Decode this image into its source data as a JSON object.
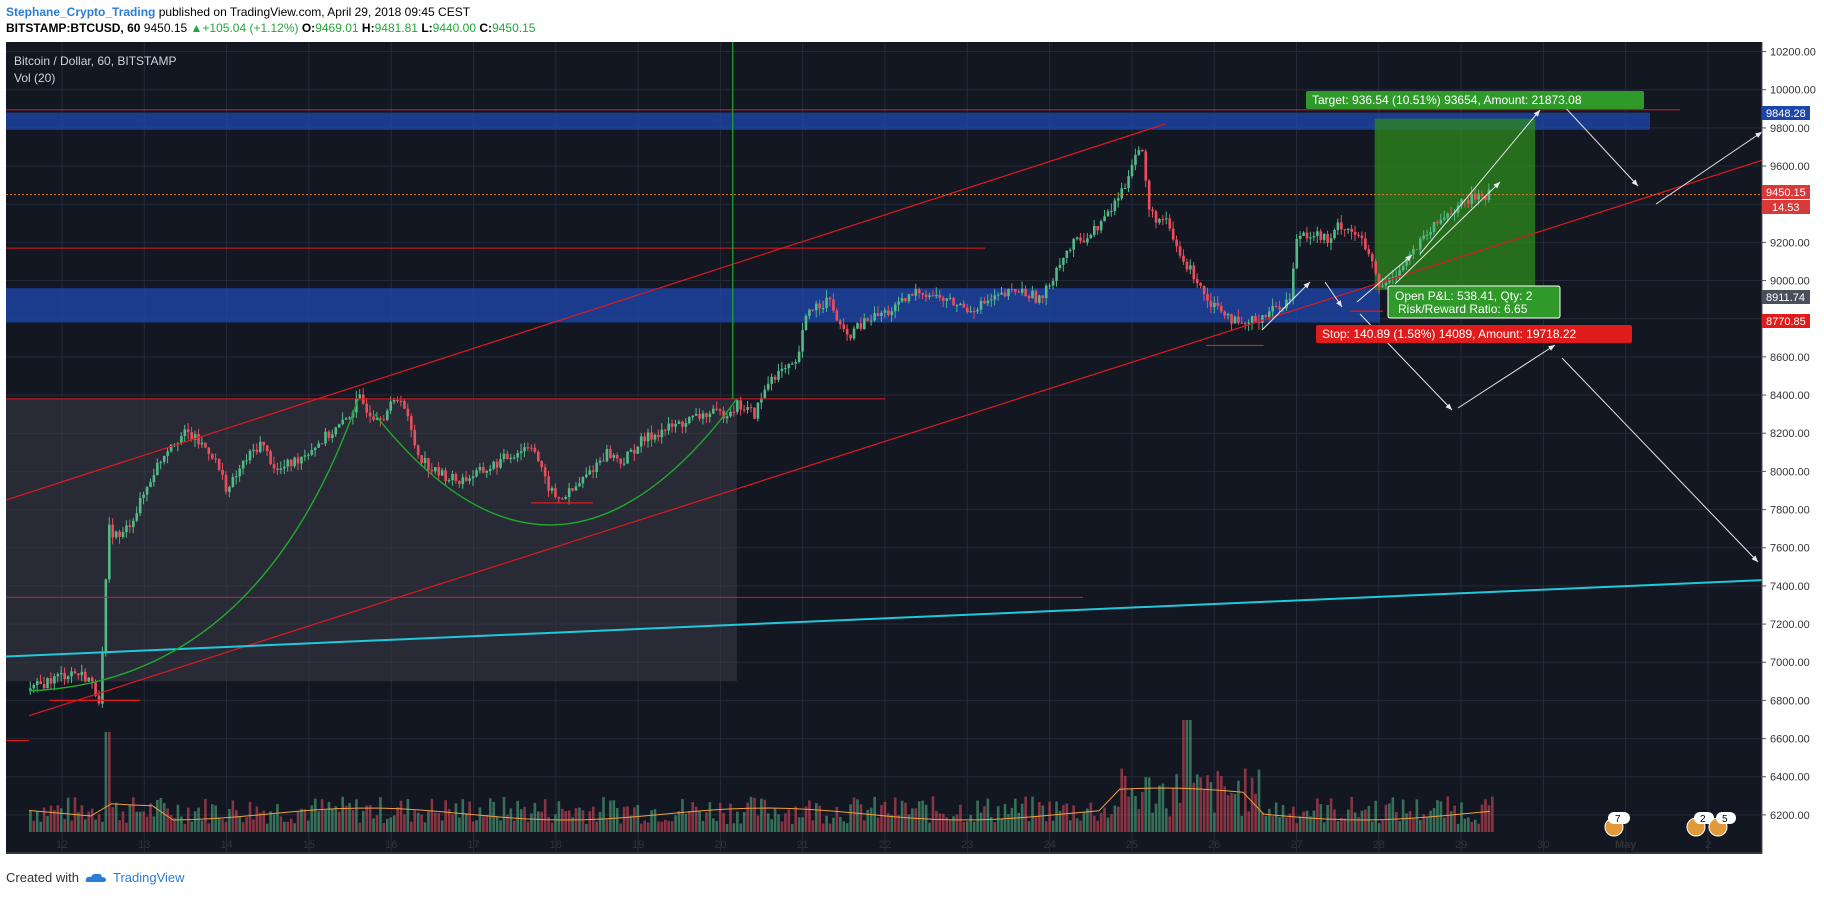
{
  "header": {
    "author": "Stephane_Crypto_Trading",
    "published": "published on TradingView.com, April 29, 2018 09:45 CEST",
    "symbol": "BITSTAMP:BTCUSD, 60",
    "last": "9450.15",
    "change": "+105.04 (+1.12%)",
    "o_label": "O:",
    "o_value": "9469.01",
    "h_label": "H:",
    "h_value": "9481.81",
    "l_label": "L:",
    "l_value": "9440.00",
    "c_label": "C:",
    "c_value": "9450.15"
  },
  "legend": {
    "title": "Bitcoin / Dollar, 60, BITSTAMP",
    "volume": "Vol (20)"
  },
  "footer": {
    "created": "Created with",
    "brand": "TradingView"
  },
  "colors": {
    "background": "#131722",
    "grid": "#242a38",
    "up": "#53b987",
    "down": "#eb4d5c",
    "trendline": "#e0191f",
    "zone": "#1e45a8",
    "target_box": "#2e8b1e",
    "cyan_line": "#21c9db",
    "cup": "#1faa2e"
  },
  "badges": {
    "target": "Target: 936.54 (10.51%) 93654, Amount: 21873.08",
    "stop": "Stop: 140.89 (1.58%) 14089, Amount: 19718.22",
    "open_pl": "Open P&L: 538.41, Qty: 2",
    "risk_reward": "Risk/Reward Ratio: 6.65"
  },
  "price_labels": {
    "zone_top": "9848.28",
    "last_price": "9450.15",
    "countdown": "14.53",
    "zone_low": "8911.74",
    "stop_price": "8770.85"
  },
  "markers": {
    "m1": "7",
    "m2": "2",
    "m3": "5"
  },
  "chart_data": {
    "type": "candlestick",
    "title": "Bitcoin / Dollar, 60, BITSTAMP",
    "ylim": [
      6100,
      10250
    ],
    "y_ticks": [
      6200,
      6400,
      6600,
      6800,
      7000,
      7200,
      7400,
      7600,
      7800,
      8000,
      8200,
      8400,
      8600,
      8800,
      9000,
      9200,
      9400,
      9600,
      9800,
      10000,
      10200
    ],
    "y_tick_labels": [
      "6200.00",
      "6400.00",
      "6600.00",
      "6800.00",
      "7000.00",
      "7200.00",
      "7400.00",
      "7600.00",
      "7800.00",
      "8000.00",
      "8200.00",
      "8400.00",
      "8600.00",
      "8800.00",
      "9000.00",
      "9200.00",
      "9400.00",
      "9600.00",
      "9800.00",
      "10000.00",
      "10200.00"
    ],
    "x_labels": [
      "12",
      "13",
      "14",
      "15",
      "16",
      "17",
      "18",
      "19",
      "20",
      "21",
      "22",
      "23",
      "24",
      "25",
      "26",
      "27",
      "28",
      "29",
      "30",
      "May",
      "2"
    ],
    "price_path": [
      [
        11.6,
        6850
      ],
      [
        11.8,
        6900
      ],
      [
        12.1,
        6950
      ],
      [
        12.3,
        6920
      ],
      [
        12.45,
        6800
      ],
      [
        12.55,
        7700
      ],
      [
        12.7,
        7650
      ],
      [
        12.9,
        7800
      ],
      [
        13.1,
        8000
      ],
      [
        13.3,
        8150
      ],
      [
        13.5,
        8200
      ],
      [
        13.8,
        8100
      ],
      [
        14.0,
        7900
      ],
      [
        14.2,
        8050
      ],
      [
        14.4,
        8150
      ],
      [
        14.6,
        8000
      ],
      [
        14.8,
        8050
      ],
      [
        15.1,
        8150
      ],
      [
        15.4,
        8250
      ],
      [
        15.6,
        8380
      ],
      [
        15.75,
        8300
      ],
      [
        15.9,
        8300
      ],
      [
        16.1,
        8400
      ],
      [
        16.3,
        8100
      ],
      [
        16.5,
        8000
      ],
      [
        16.8,
        7950
      ],
      [
        17.1,
        8000
      ],
      [
        17.3,
        8050
      ],
      [
        17.5,
        8100
      ],
      [
        17.7,
        8150
      ],
      [
        17.85,
        7950
      ],
      [
        18.0,
        7850
      ],
      [
        18.2,
        7900
      ],
      [
        18.4,
        8000
      ],
      [
        18.6,
        8100
      ],
      [
        18.8,
        8050
      ],
      [
        19.0,
        8150
      ],
      [
        19.2,
        8200
      ],
      [
        19.5,
        8250
      ],
      [
        19.8,
        8300
      ],
      [
        20.0,
        8300
      ],
      [
        20.2,
        8350
      ],
      [
        20.4,
        8300
      ],
      [
        20.6,
        8500
      ],
      [
        20.9,
        8550
      ],
      [
        21.05,
        8850
      ],
      [
        21.3,
        8900
      ],
      [
        21.5,
        8700
      ],
      [
        21.8,
        8800
      ],
      [
        22.1,
        8850
      ],
      [
        22.4,
        8950
      ],
      [
        22.7,
        8900
      ],
      [
        23.0,
        8850
      ],
      [
        23.3,
        8900
      ],
      [
        23.6,
        8950
      ],
      [
        23.9,
        8900
      ],
      [
        24.1,
        9100
      ],
      [
        24.3,
        9200
      ],
      [
        24.5,
        9250
      ],
      [
        24.7,
        9350
      ],
      [
        24.9,
        9500
      ],
      [
        25.0,
        9650
      ],
      [
        25.1,
        9700
      ],
      [
        25.2,
        9350
      ],
      [
        25.4,
        9300
      ],
      [
        25.6,
        9100
      ],
      [
        25.8,
        9000
      ],
      [
        25.9,
        8900
      ],
      [
        26.1,
        8850
      ],
      [
        26.3,
        8750
      ],
      [
        26.5,
        8800
      ],
      [
        26.7,
        8850
      ],
      [
        26.9,
        8900
      ],
      [
        27.0,
        9250
      ],
      [
        27.2,
        9250
      ],
      [
        27.4,
        9200
      ],
      [
        27.5,
        9300
      ],
      [
        27.7,
        9250
      ],
      [
        27.85,
        9150
      ],
      [
        28.0,
        8950
      ],
      [
        28.2,
        9050
      ],
      [
        28.4,
        9150
      ],
      [
        28.6,
        9250
      ],
      [
        28.8,
        9350
      ],
      [
        29.0,
        9400
      ],
      [
        29.2,
        9450
      ],
      [
        29.35,
        9450
      ]
    ],
    "volume_max": 6830
  }
}
